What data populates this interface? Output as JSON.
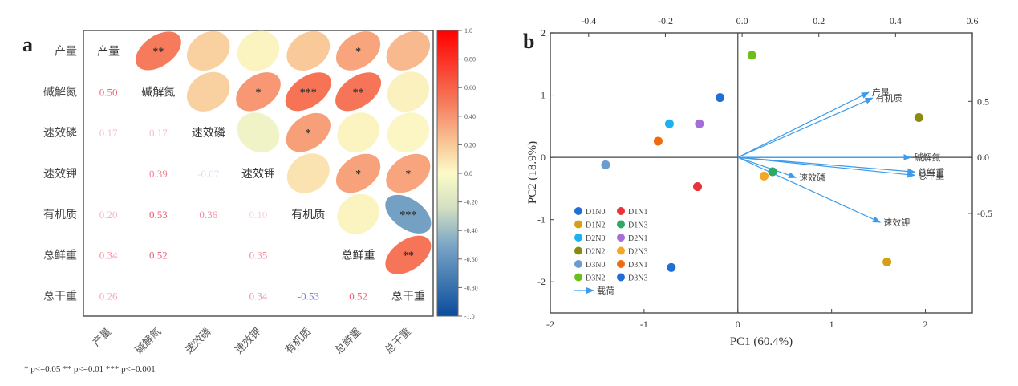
{
  "chart_data": [
    {
      "type": "heatmap",
      "panel_label": "a",
      "title": "",
      "variables": [
        "产量",
        "碱解氮",
        "速效磷",
        "速效钾",
        "有机质",
        "总鲜重",
        "总干重"
      ],
      "upper_cells": [
        {
          "row": 0,
          "col": 1,
          "r": 0.5,
          "sig": "**"
        },
        {
          "row": 0,
          "col": 2,
          "r": 0.17,
          "sig": ""
        },
        {
          "row": 0,
          "col": 3,
          "r": 0.03,
          "sig": ""
        },
        {
          "row": 0,
          "col": 4,
          "r": 0.2,
          "sig": ""
        },
        {
          "row": 0,
          "col": 5,
          "r": 0.34,
          "sig": "*"
        },
        {
          "row": 0,
          "col": 6,
          "r": 0.26,
          "sig": ""
        },
        {
          "row": 1,
          "col": 2,
          "r": 0.17,
          "sig": ""
        },
        {
          "row": 1,
          "col": 3,
          "r": 0.39,
          "sig": "*"
        },
        {
          "row": 1,
          "col": 4,
          "r": 0.53,
          "sig": "***"
        },
        {
          "row": 1,
          "col": 5,
          "r": 0.52,
          "sig": "**"
        },
        {
          "row": 1,
          "col": 6,
          "r": 0.04,
          "sig": ""
        },
        {
          "row": 2,
          "col": 3,
          "r": -0.07,
          "sig": ""
        },
        {
          "row": 2,
          "col": 4,
          "r": 0.36,
          "sig": "*"
        },
        {
          "row": 2,
          "col": 5,
          "r": 0.03,
          "sig": ""
        },
        {
          "row": 2,
          "col": 6,
          "r": 0.02,
          "sig": ""
        },
        {
          "row": 3,
          "col": 4,
          "r": 0.1,
          "sig": ""
        },
        {
          "row": 3,
          "col": 5,
          "r": 0.35,
          "sig": "*"
        },
        {
          "row": 3,
          "col": 6,
          "r": 0.34,
          "sig": "*"
        },
        {
          "row": 4,
          "col": 5,
          "r": 0.03,
          "sig": ""
        },
        {
          "row": 4,
          "col": 6,
          "r": -0.53,
          "sig": "***"
        },
        {
          "row": 5,
          "col": 6,
          "r": 0.52,
          "sig": "**"
        }
      ],
      "lower_labels": [
        {
          "row": 1,
          "col": 0,
          "text": "0.50",
          "r": 0.5
        },
        {
          "row": 2,
          "col": 0,
          "text": "0.17",
          "r": 0.17
        },
        {
          "row": 2,
          "col": 1,
          "text": "0.17",
          "r": 0.17
        },
        {
          "row": 3,
          "col": 1,
          "text": "0.39",
          "r": 0.39
        },
        {
          "row": 3,
          "col": 2,
          "text": "-0.07",
          "r": -0.07
        },
        {
          "row": 4,
          "col": 0,
          "text": "0.20",
          "r": 0.2
        },
        {
          "row": 4,
          "col": 1,
          "text": "0.53",
          "r": 0.53
        },
        {
          "row": 4,
          "col": 2,
          "text": "0.36",
          "r": 0.36
        },
        {
          "row": 4,
          "col": 3,
          "text": "0.10",
          "r": 0.1
        },
        {
          "row": 5,
          "col": 0,
          "text": "0.34",
          "r": 0.34
        },
        {
          "row": 5,
          "col": 1,
          "text": "0.52",
          "r": 0.52
        },
        {
          "row": 5,
          "col": 3,
          "text": "0.35",
          "r": 0.35
        },
        {
          "row": 6,
          "col": 0,
          "text": "0.26",
          "r": 0.26
        },
        {
          "row": 6,
          "col": 3,
          "text": "0.34",
          "r": 0.34
        },
        {
          "row": 6,
          "col": 4,
          "text": "-0.53",
          "r": -0.53
        },
        {
          "row": 6,
          "col": 5,
          "text": "0.52",
          "r": 0.52
        }
      ],
      "colorbar": {
        "range": [
          -1.0,
          1.0
        ],
        "ticks": [
          "1.0",
          "0.80",
          "0.60",
          "0.40",
          "0.20",
          "0.0",
          "-0.20",
          "-0.40",
          "-0.60",
          "-0.80",
          "-1.0"
        ],
        "colors": {
          "high": "#ff0000",
          "mid": "#ffffc0",
          "low": "#0050a0"
        }
      },
      "footnote": "* p<=0.05  ** p<=0.01  *** p<=0.001"
    },
    {
      "type": "scatter",
      "panel_label": "b",
      "title": "",
      "xlabel": "PC1 (60.4%)",
      "ylabel": "PC2 (18.9%)",
      "xlim": [
        -2,
        2.5
      ],
      "ylim": [
        -2.5,
        2
      ],
      "xticks": [
        "-2",
        "-1",
        "0",
        "1",
        "2"
      ],
      "yticks": [
        "2",
        "1",
        "0",
        "-1",
        "-2"
      ],
      "top_axis": {
        "lim": [
          -0.5,
          0.6
        ],
        "ticks": [
          "-0.4",
          "-0.2",
          "0.0",
          "0.2",
          "0.4",
          "0.6"
        ]
      },
      "right_axis": {
        "lim": [
          -0.78,
          0.78
        ],
        "ticks": [
          "0.5",
          "0.0",
          "-0.5"
        ]
      },
      "points": [
        {
          "name": "D1N0",
          "x": -0.19,
          "y": 0.96,
          "color": "#1f6fd6"
        },
        {
          "name": "D1N1",
          "x": -0.43,
          "y": -0.47,
          "color": "#e8333a"
        },
        {
          "name": "D1N2",
          "x": 1.59,
          "y": -1.68,
          "color": "#d4a017"
        },
        {
          "name": "D1N3",
          "x": 0.37,
          "y": -0.23,
          "color": "#2ea868"
        },
        {
          "name": "D2N0",
          "x": -0.73,
          "y": 0.54,
          "color": "#1ab2f0"
        },
        {
          "name": "D2N1",
          "x": -0.41,
          "y": 0.54,
          "color": "#a46ed6"
        },
        {
          "name": "D2N2",
          "x": 1.93,
          "y": 0.64,
          "color": "#8a8a10"
        },
        {
          "name": "D2N3",
          "x": 0.28,
          "y": -0.3,
          "color": "#f5a623"
        },
        {
          "name": "D3N0",
          "x": -1.41,
          "y": -0.12,
          "color": "#6b9bd1"
        },
        {
          "name": "D3N1",
          "x": -0.85,
          "y": 0.26,
          "color": "#f06a10"
        },
        {
          "name": "D3N2",
          "x": 0.15,
          "y": 1.64,
          "color": "#6cbf1a"
        },
        {
          "name": "D3N3",
          "x": -0.71,
          "y": -1.77,
          "color": "#1f6fd6"
        }
      ],
      "loadings": [
        {
          "name": "产量",
          "x": 0.33,
          "y": 0.58
        },
        {
          "name": "有机质",
          "x": 0.34,
          "y": 0.53
        },
        {
          "name": "碱解氮",
          "x": 0.44,
          "y": 0.0
        },
        {
          "name": "总鲜重",
          "x": 0.45,
          "y": -0.13
        },
        {
          "name": "总干重",
          "x": 0.45,
          "y": -0.16
        },
        {
          "name": "速效磷",
          "x": 0.14,
          "y": -0.18
        },
        {
          "name": "速效钾",
          "x": 0.36,
          "y": -0.58
        }
      ],
      "loading_color": "#3d9be9",
      "legend": {
        "items": [
          "D1N0",
          "D1N1",
          "D1N2",
          "D1N3",
          "D2N0",
          "D2N1",
          "D2N2",
          "D2N3",
          "D3N0",
          "D3N1",
          "D3N2",
          "D3N3"
        ],
        "arrow_label": "载荷",
        "placement": "bottom-left"
      }
    }
  ]
}
